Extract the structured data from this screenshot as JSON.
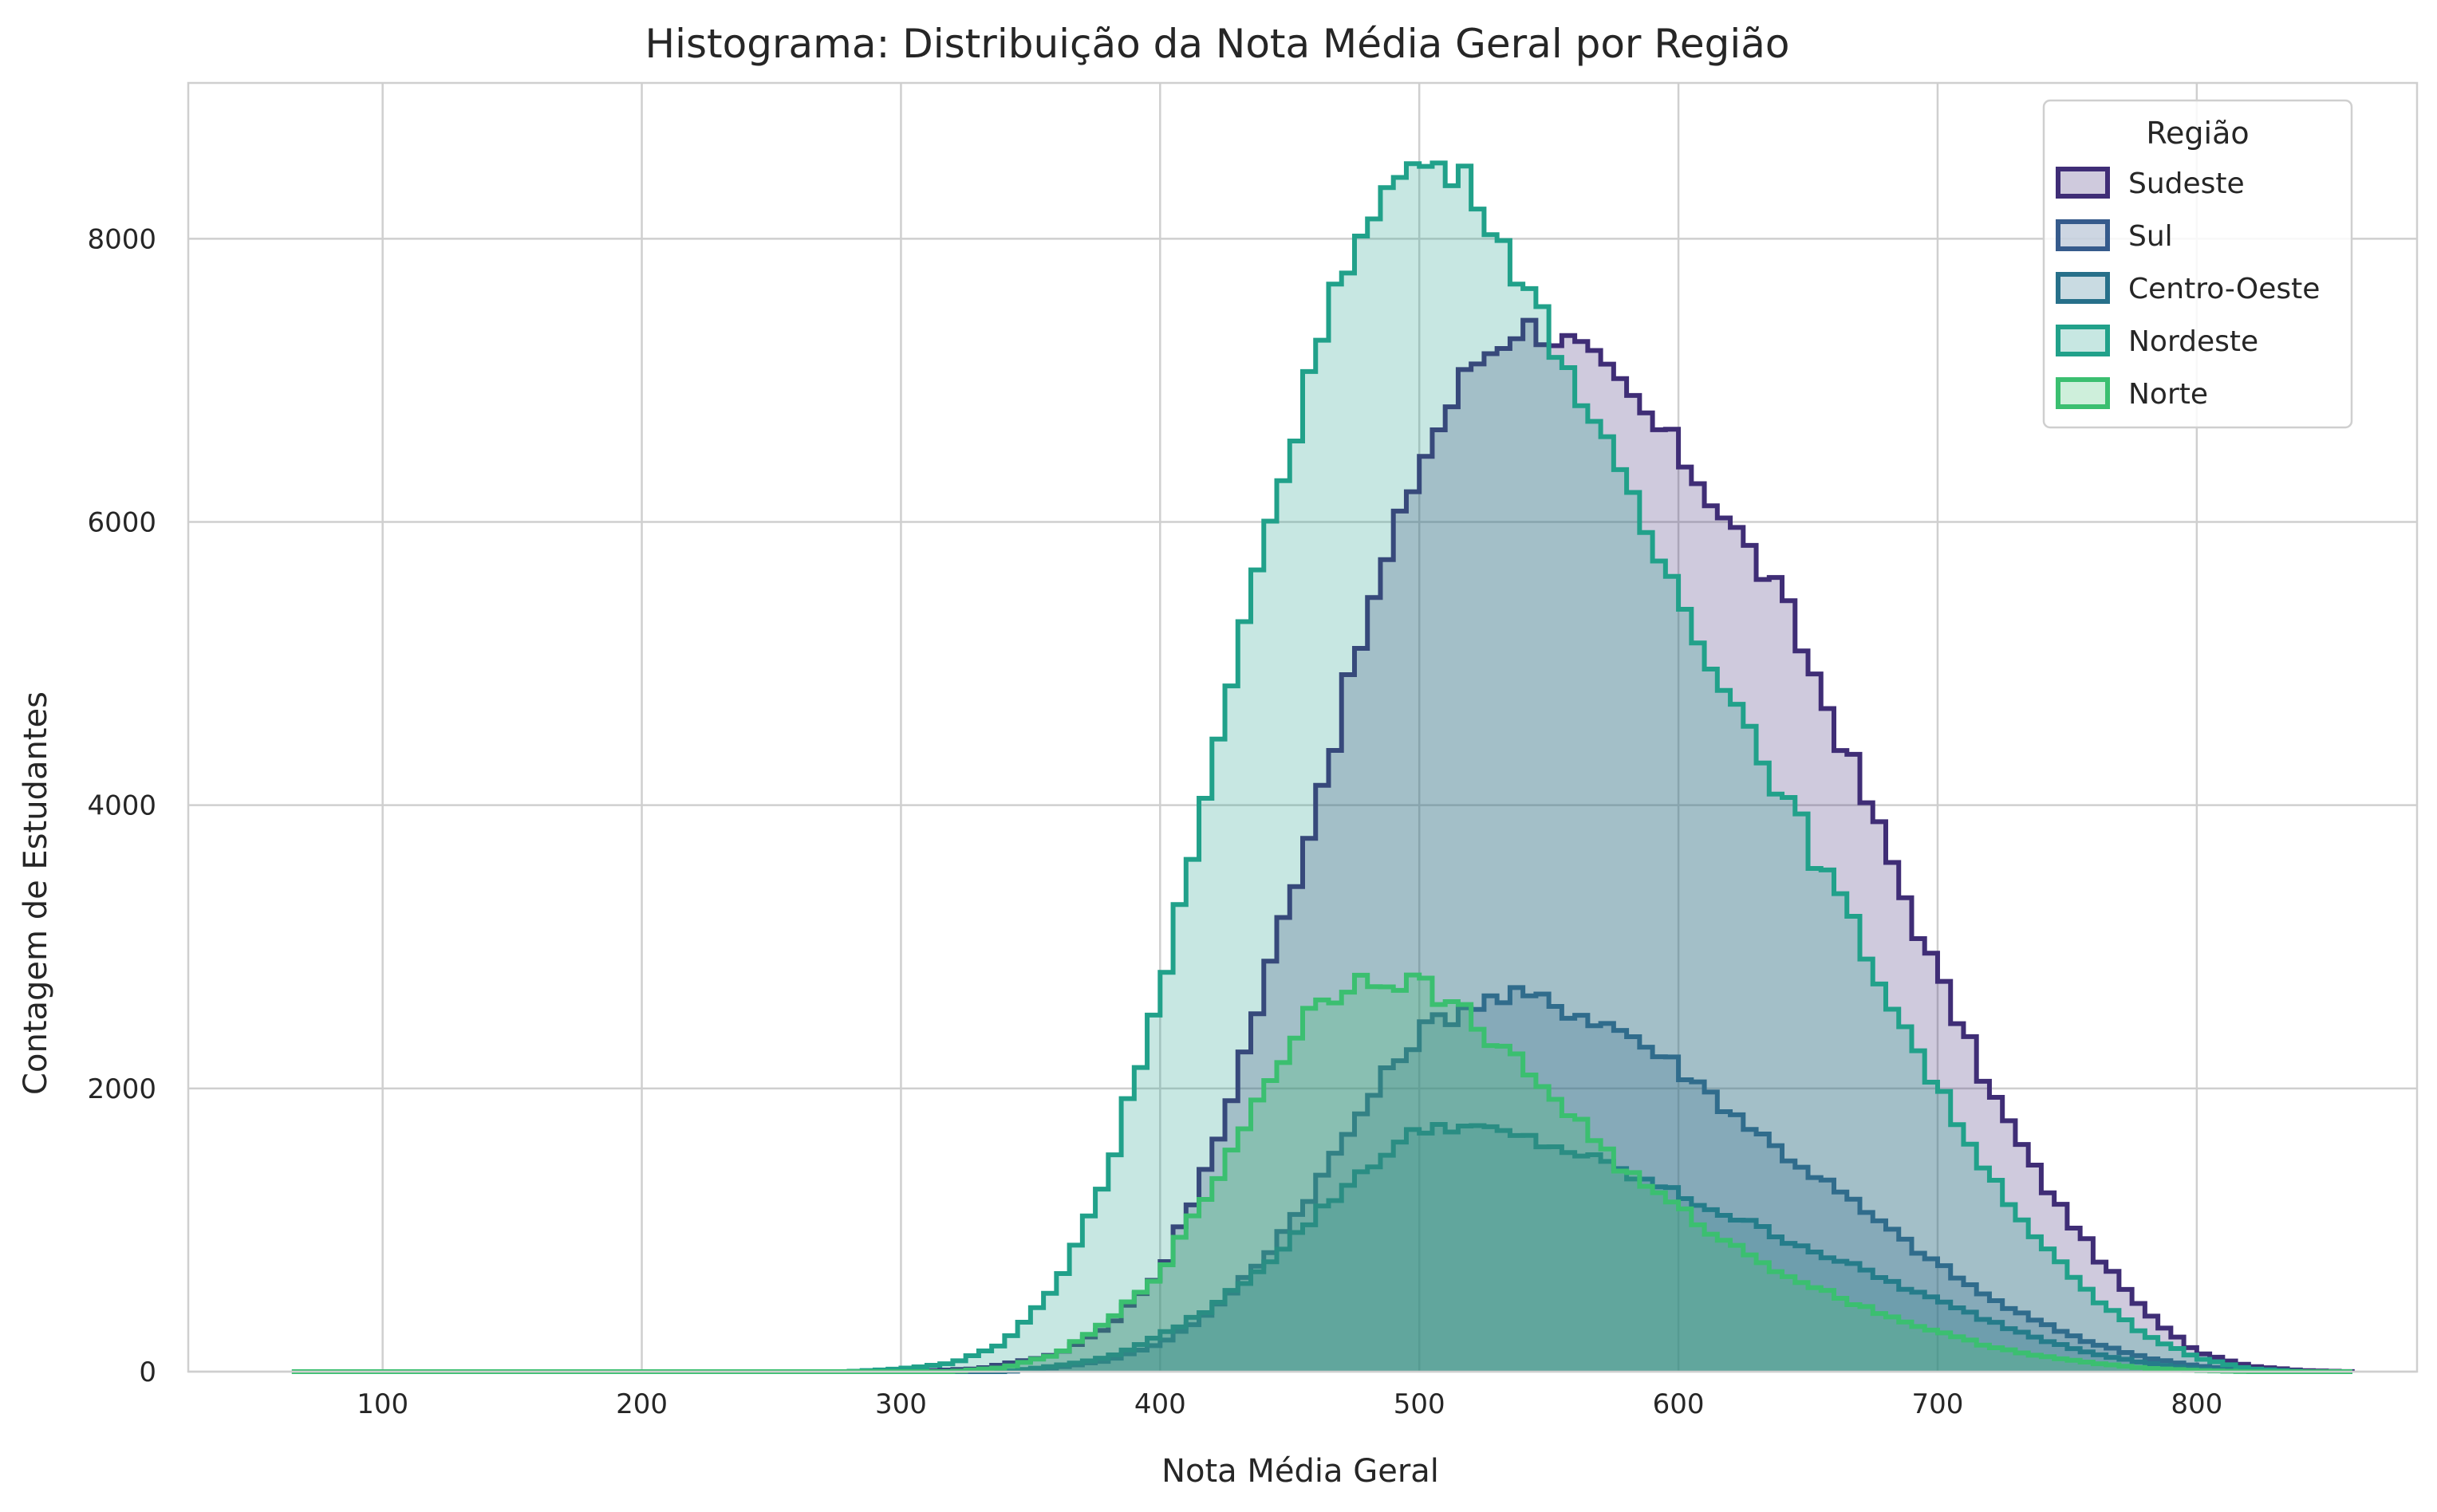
{
  "chart_data": {
    "type": "histogram",
    "title": "Histograma: Distribuição da Nota Média Geral por Região",
    "xlabel": "Nota Média Geral",
    "ylabel": "Contagem de Estudantes",
    "xlim": [
      25,
      885
    ],
    "ylim": [
      0,
      9100
    ],
    "xticks": [
      100,
      200,
      300,
      400,
      500,
      600,
      700,
      800
    ],
    "yticks": [
      0,
      2000,
      4000,
      6000,
      8000
    ],
    "grid": true,
    "legend": {
      "title": "Região",
      "placement": "top-right"
    },
    "histtype": "step-filled",
    "bin_width": 5,
    "x_range": [
      65,
      860
    ],
    "series": [
      {
        "name": "Sudeste",
        "color": "#3f2d76",
        "fill_opacity": 0.25,
        "peak_x": 545,
        "peak_y": 7480,
        "profile": [
          [
            65,
            0
          ],
          [
            300,
            0
          ],
          [
            330,
            20
          ],
          [
            360,
            120
          ],
          [
            380,
            320
          ],
          [
            400,
            700
          ],
          [
            420,
            1500
          ],
          [
            440,
            2700
          ],
          [
            460,
            4000
          ],
          [
            480,
            5300
          ],
          [
            500,
            6400
          ],
          [
            520,
            7100
          ],
          [
            540,
            7400
          ],
          [
            560,
            7250
          ],
          [
            580,
            6900
          ],
          [
            600,
            6500
          ],
          [
            620,
            6000
          ],
          [
            640,
            5450
          ],
          [
            660,
            4600
          ],
          [
            680,
            3700
          ],
          [
            700,
            2800
          ],
          [
            720,
            2000
          ],
          [
            740,
            1350
          ],
          [
            760,
            850
          ],
          [
            780,
            420
          ],
          [
            800,
            140
          ],
          [
            820,
            40
          ],
          [
            840,
            8
          ],
          [
            860,
            0
          ]
        ]
      },
      {
        "name": "Sul",
        "color": "#365b8c",
        "fill_opacity": 0.25,
        "peak_x": 525,
        "peak_y": 2700,
        "profile": [
          [
            65,
            0
          ],
          [
            340,
            0
          ],
          [
            360,
            30
          ],
          [
            380,
            80
          ],
          [
            400,
            200
          ],
          [
            420,
            420
          ],
          [
            440,
            800
          ],
          [
            460,
            1300
          ],
          [
            480,
            1900
          ],
          [
            500,
            2400
          ],
          [
            520,
            2600
          ],
          [
            540,
            2650
          ],
          [
            560,
            2550
          ],
          [
            580,
            2400
          ],
          [
            600,
            2150
          ],
          [
            620,
            1850
          ],
          [
            640,
            1550
          ],
          [
            660,
            1300
          ],
          [
            680,
            1020
          ],
          [
            700,
            760
          ],
          [
            720,
            520
          ],
          [
            740,
            340
          ],
          [
            760,
            200
          ],
          [
            780,
            100
          ],
          [
            800,
            40
          ],
          [
            820,
            10
          ],
          [
            840,
            0
          ],
          [
            860,
            0
          ]
        ]
      },
      {
        "name": "Centro-Oeste",
        "color": "#27708a",
        "fill_opacity": 0.25,
        "peak_x": 510,
        "peak_y": 1800,
        "profile": [
          [
            65,
            0
          ],
          [
            340,
            0
          ],
          [
            360,
            40
          ],
          [
            380,
            100
          ],
          [
            400,
            250
          ],
          [
            420,
            450
          ],
          [
            440,
            750
          ],
          [
            460,
            1100
          ],
          [
            480,
            1450
          ],
          [
            500,
            1700
          ],
          [
            510,
            1750
          ],
          [
            520,
            1720
          ],
          [
            540,
            1650
          ],
          [
            560,
            1550
          ],
          [
            580,
            1400
          ],
          [
            600,
            1250
          ],
          [
            620,
            1100
          ],
          [
            640,
            950
          ],
          [
            660,
            800
          ],
          [
            680,
            650
          ],
          [
            700,
            500
          ],
          [
            720,
            360
          ],
          [
            740,
            230
          ],
          [
            760,
            130
          ],
          [
            780,
            60
          ],
          [
            800,
            20
          ],
          [
            820,
            5
          ],
          [
            840,
            0
          ],
          [
            860,
            0
          ]
        ]
      },
      {
        "name": "Nordeste",
        "color": "#21a18a",
        "fill_opacity": 0.25,
        "peak_x": 500,
        "peak_y": 8600,
        "profile": [
          [
            65,
            0
          ],
          [
            280,
            0
          ],
          [
            300,
            20
          ],
          [
            320,
            60
          ],
          [
            340,
            200
          ],
          [
            360,
            600
          ],
          [
            380,
            1400
          ],
          [
            400,
            2700
          ],
          [
            420,
            4200
          ],
          [
            440,
            5800
          ],
          [
            460,
            7200
          ],
          [
            480,
            8200
          ],
          [
            500,
            8550
          ],
          [
            520,
            8400
          ],
          [
            540,
            7700
          ],
          [
            560,
            7000
          ],
          [
            580,
            6200
          ],
          [
            600,
            5500
          ],
          [
            620,
            4800
          ],
          [
            640,
            4100
          ],
          [
            660,
            3400
          ],
          [
            680,
            2700
          ],
          [
            700,
            2000
          ],
          [
            720,
            1400
          ],
          [
            740,
            900
          ],
          [
            760,
            520
          ],
          [
            780,
            260
          ],
          [
            800,
            100
          ],
          [
            820,
            20
          ],
          [
            840,
            0
          ],
          [
            860,
            0
          ]
        ]
      },
      {
        "name": "Norte",
        "color": "#3bbf70",
        "fill_opacity": 0.25,
        "peak_x": 480,
        "peak_y": 2850,
        "profile": [
          [
            65,
            0
          ],
          [
            320,
            0
          ],
          [
            340,
            30
          ],
          [
            360,
            120
          ],
          [
            380,
            350
          ],
          [
            400,
            700
          ],
          [
            420,
            1300
          ],
          [
            440,
            2000
          ],
          [
            460,
            2600
          ],
          [
            480,
            2800
          ],
          [
            500,
            2750
          ],
          [
            520,
            2500
          ],
          [
            540,
            2150
          ],
          [
            560,
            1800
          ],
          [
            580,
            1400
          ],
          [
            600,
            1150
          ],
          [
            620,
            900
          ],
          [
            640,
            700
          ],
          [
            660,
            540
          ],
          [
            680,
            400
          ],
          [
            700,
            280
          ],
          [
            720,
            180
          ],
          [
            740,
            110
          ],
          [
            760,
            60
          ],
          [
            780,
            25
          ],
          [
            800,
            8
          ],
          [
            820,
            0
          ],
          [
            860,
            0
          ]
        ]
      }
    ]
  }
}
